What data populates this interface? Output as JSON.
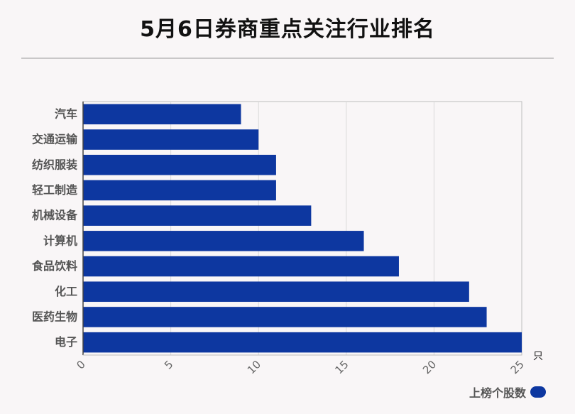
{
  "title": "5月6日券商重点关注行业排名",
  "legend": {
    "label": "上榜个股数"
  },
  "colors": {
    "bar": "#0d37a0",
    "background": "#f9f6f7",
    "grid": "#d9d9d9",
    "axis": "#bdbdbd"
  },
  "chart_data": {
    "type": "bar",
    "orientation": "horizontal",
    "categories": [
      "汽车",
      "交通运输",
      "纺织服装",
      "轻工制造",
      "机械设备",
      "计算机",
      "食品饮料",
      "化工",
      "医药生物",
      "电子"
    ],
    "series": [
      {
        "name": "上榜个股数",
        "values": [
          9,
          10,
          11,
          11,
          13,
          16,
          18,
          22,
          23,
          25
        ]
      }
    ],
    "xlim": [
      0,
      25
    ],
    "xticks": [
      "0",
      "5",
      "10",
      "15",
      "20",
      "25"
    ],
    "xunit": "只",
    "grid": true,
    "legend_position": "bottom-right"
  }
}
